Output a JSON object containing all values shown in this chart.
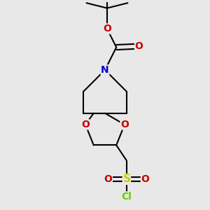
{
  "background_color": "#e8e8e8",
  "bond_color": "#000000",
  "bond_width": 1.5,
  "atom_colors": {
    "N": "#0000cc",
    "O": "#cc0000",
    "S": "#cccc00",
    "Cl": "#66cc00",
    "C": "#000000"
  },
  "figsize": [
    3.0,
    3.0
  ],
  "dpi": 100
}
